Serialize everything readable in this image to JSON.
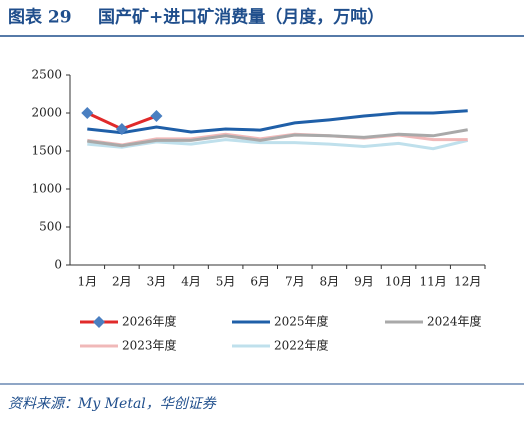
{
  "chart_data": {
    "type": "line",
    "figure_label": "图表 29",
    "title": "国产矿+进口矿消费量（月度，万吨）",
    "source": "资料来源：My Metal，华创证券",
    "categories": [
      "1月",
      "2月",
      "3月",
      "4月",
      "5月",
      "6月",
      "7月",
      "8月",
      "9月",
      "10月",
      "11月",
      "12月"
    ],
    "ylim": [
      0,
      2500
    ],
    "yticks": [
      0,
      500,
      1000,
      1500,
      2000,
      2500
    ],
    "grid": false,
    "series": [
      {
        "name": "2026年度",
        "color": "#e02a2a",
        "marker": "diamond",
        "marker_color": "#4a7fc1",
        "values": [
          2000,
          1790,
          1960,
          null,
          null,
          null,
          null,
          null,
          null,
          null,
          null,
          null
        ]
      },
      {
        "name": "2025年度",
        "color": "#1f5fa8",
        "values": [
          1790,
          1740,
          1815,
          1750,
          1790,
          1775,
          1870,
          1910,
          1960,
          2000,
          2000,
          2030
        ]
      },
      {
        "name": "2024年度",
        "color": "#a9a9a9",
        "values": [
          1630,
          1570,
          1640,
          1640,
          1700,
          1640,
          1710,
          1700,
          1680,
          1720,
          1700,
          1780
        ]
      },
      {
        "name": "2023年度",
        "color": "#f0b8b8",
        "values": [
          1640,
          1580,
          1660,
          1660,
          1720,
          1660,
          1720,
          1700,
          1670,
          1710,
          1650,
          1650
        ]
      },
      {
        "name": "2022年度",
        "color": "#bfe0ec",
        "values": [
          1590,
          1550,
          1620,
          1590,
          1650,
          1610,
          1610,
          1590,
          1560,
          1600,
          1530,
          1640
        ]
      }
    ]
  }
}
